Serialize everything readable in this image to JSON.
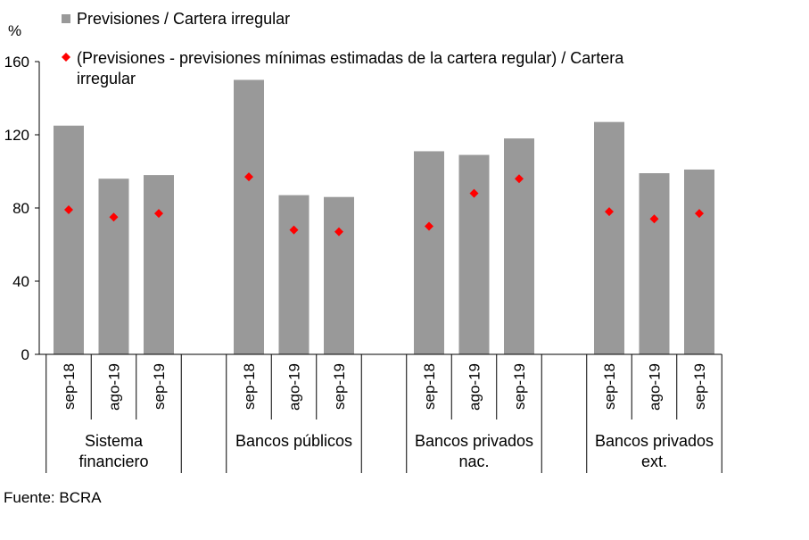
{
  "chart_data": {
    "type": "bar",
    "unit_label": "%",
    "ylim": [
      0,
      160
    ],
    "yticks": [
      0,
      40,
      80,
      120,
      160
    ],
    "groups": [
      {
        "label_lines": [
          "Sistema",
          "financiero"
        ],
        "periods": [
          "sep-18",
          "ago-19",
          "sep-19"
        ]
      },
      {
        "label_lines": [
          "Bancos públicos"
        ],
        "periods": [
          "sep-18",
          "ago-19",
          "sep-19"
        ]
      },
      {
        "label_lines": [
          "Bancos privados",
          "nac."
        ],
        "periods": [
          "sep-18",
          "ago-19",
          "sep-19"
        ]
      },
      {
        "label_lines": [
          "Bancos privados",
          "ext."
        ],
        "periods": [
          "sep-18",
          "ago-19",
          "sep-19"
        ]
      }
    ],
    "series": [
      {
        "name": "Previsiones / Cartera irregular",
        "kind": "bar",
        "color": "#999999",
        "values": [
          125,
          96,
          98,
          150,
          87,
          86,
          111,
          109,
          118,
          127,
          99,
          101
        ]
      },
      {
        "name": "(Previsiones - previsiones mínimas estimadas de la cartera regular) / Cartera irregular",
        "kind": "marker",
        "color": "#ff0000",
        "values": [
          79,
          75,
          77,
          97,
          68,
          67,
          70,
          88,
          96,
          78,
          74,
          77
        ]
      }
    ],
    "legend": {
      "position": "top-left",
      "lines": [
        [
          "Previsiones / Cartera irregular"
        ],
        [
          "(Previsiones - previsiones mínimas estimadas de la cartera regular) / Cartera",
          "irregular"
        ]
      ]
    },
    "grid": false
  },
  "source": "Fuente: BCRA"
}
